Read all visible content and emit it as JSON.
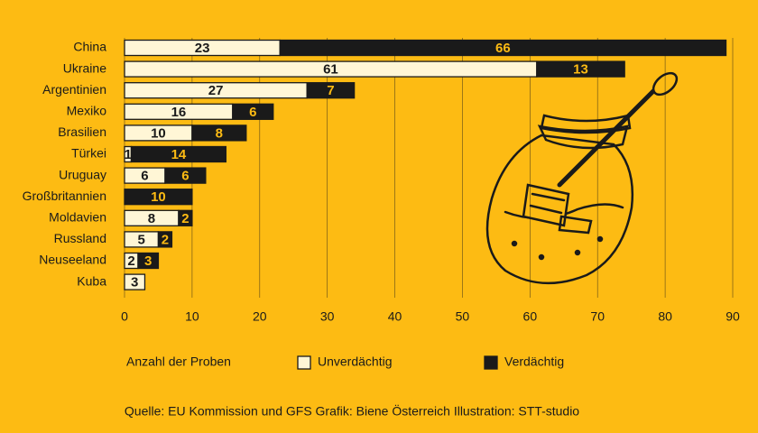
{
  "chart_data": {
    "type": "stacked-barh",
    "categories": [
      "China",
      "Ukraine",
      "Argentinien",
      "Mexiko",
      "Brasilien",
      "Türkei",
      "Uruguay",
      "Großbritannien",
      "Moldavien",
      "Russland",
      "Neuseeland",
      "Kuba"
    ],
    "series": [
      {
        "name": "Unverdächtig",
        "color": "#fff6d6",
        "values": [
          23,
          61,
          27,
          16,
          10,
          1,
          6,
          0,
          8,
          5,
          2,
          3
        ]
      },
      {
        "name": "Verdächtig",
        "color": "#1a1a1a",
        "values": [
          66,
          13,
          7,
          6,
          8,
          14,
          6,
          10,
          2,
          2,
          3,
          0
        ]
      }
    ],
    "xlim": [
      0,
      90
    ],
    "xticks": [
      0,
      10,
      20,
      30,
      40,
      50,
      60,
      70,
      80,
      90
    ],
    "grid": true,
    "xlabel": "Anzahl der Proben",
    "source": "Quelle: EU Kommission und GFS Grafik: Biene Österreich  Illustration: STT-studio"
  }
}
